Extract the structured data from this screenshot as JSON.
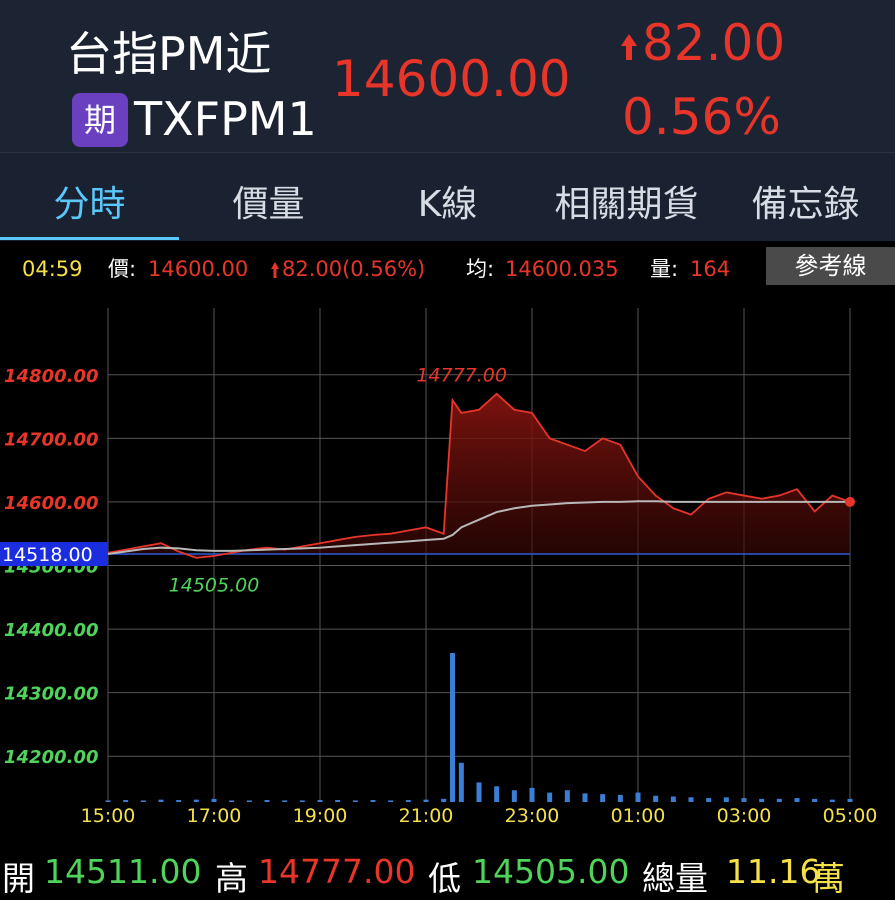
{
  "header": {
    "name": "台指PM近",
    "badge": "期",
    "code": "TXFPM1",
    "price": "14600.00",
    "change": "82.00",
    "change_pct": "0.56%"
  },
  "tabs": [
    "分時",
    "價量",
    "K線",
    "相關期貨",
    "備忘錄"
  ],
  "info": {
    "time": "04:59",
    "price_label": "價:",
    "price": "14600.00",
    "change": "82.00(0.56%)",
    "avg_label": "均:",
    "avg": "14600.035",
    "vol_label": "量:",
    "vol": "164",
    "button": "參考線"
  },
  "chart_data": {
    "type": "line",
    "x": [
      "15:00",
      "15:20",
      "15:40",
      "16:00",
      "16:20",
      "16:40",
      "17:00",
      "17:20",
      "17:40",
      "18:00",
      "18:20",
      "18:40",
      "19:00",
      "19:20",
      "19:40",
      "20:00",
      "20:20",
      "20:40",
      "21:00",
      "21:20",
      "21:30",
      "21:40",
      "22:00",
      "22:20",
      "22:40",
      "23:00",
      "23:20",
      "23:40",
      "00:00",
      "00:20",
      "00:40",
      "01:00",
      "01:20",
      "01:40",
      "02:00",
      "02:20",
      "02:40",
      "03:00",
      "03:20",
      "03:40",
      "04:00",
      "04:20",
      "04:40",
      "05:00"
    ],
    "series": [
      {
        "color": "#e8352a",
        "values": [
          14520,
          14525,
          14530,
          14535,
          14522,
          14512,
          14515,
          14520,
          14525,
          14528,
          14525,
          14530,
          14535,
          14540,
          14545,
          14548,
          14550,
          14555,
          14560,
          14550,
          14760,
          14740,
          14745,
          14770,
          14745,
          14740,
          14700,
          14690,
          14680,
          14700,
          14690,
          14640,
          14610,
          14590,
          14580,
          14605,
          14615,
          14610,
          14605,
          14610,
          14620,
          14585,
          14610,
          14600
        ]
      },
      {
        "color": "#b8b8b8",
        "values": [
          14518,
          14522,
          14526,
          14528,
          14527,
          14524,
          14523,
          14523,
          14524,
          14525,
          14526,
          14527,
          14528,
          14530,
          14532,
          14534,
          14536,
          14538,
          14540,
          14542,
          14548,
          14560,
          14572,
          14584,
          14590,
          14594,
          14596,
          14598,
          14599,
          14600,
          14600,
          14601,
          14601,
          14600,
          14600,
          14600,
          14600,
          14600,
          14600,
          14600,
          14600,
          14600,
          14600,
          14600
        ]
      },
      {
        "color": "#3b7fd4",
        "axis": "y2",
        "values": [
          20,
          25,
          20,
          30,
          25,
          30,
          40,
          20,
          20,
          25,
          20,
          20,
          25,
          25,
          20,
          25,
          20,
          25,
          30,
          40,
          1900,
          500,
          250,
          200,
          150,
          180,
          120,
          150,
          110,
          100,
          90,
          120,
          80,
          70,
          60,
          50,
          60,
          50,
          40,
          40,
          50,
          40,
          30,
          40
        ]
      }
    ],
    "xlim": [
      "15:00",
      "05:00"
    ],
    "xticks": [
      "15:00",
      "17:00",
      "19:00",
      "21:00",
      "23:00",
      "01:00",
      "03:00",
      "05:00"
    ],
    "ylim": [
      14128,
      14905
    ],
    "yticks": [
      {
        "value": 14200,
        "label": "14200.00"
      },
      {
        "value": 14300,
        "label": "14300.00"
      },
      {
        "value": 14400,
        "label": "14400.00"
      },
      {
        "value": 14500,
        "label": "14500.00"
      },
      {
        "value": 14600,
        "label": "14600.00"
      },
      {
        "value": 14700,
        "label": "14700.00"
      },
      {
        "value": 14800,
        "label": "14800.00"
      }
    ],
    "y2lim": [
      0,
      6300
    ],
    "reference": {
      "value": 14518,
      "label": "14518.00"
    },
    "high": {
      "value": 14777,
      "label": "14777.00",
      "x": "22:20"
    },
    "low": {
      "value": 14505,
      "label": "14505.00",
      "x": "17:00"
    },
    "grid": true
  },
  "footer": {
    "open_label": "開",
    "open": "14511.00",
    "high_label": "高",
    "high": "14777.00",
    "low_label": "低",
    "low": "14505.00",
    "vol_label": "總量",
    "vol": "11.16",
    "vol_unit": "萬"
  }
}
